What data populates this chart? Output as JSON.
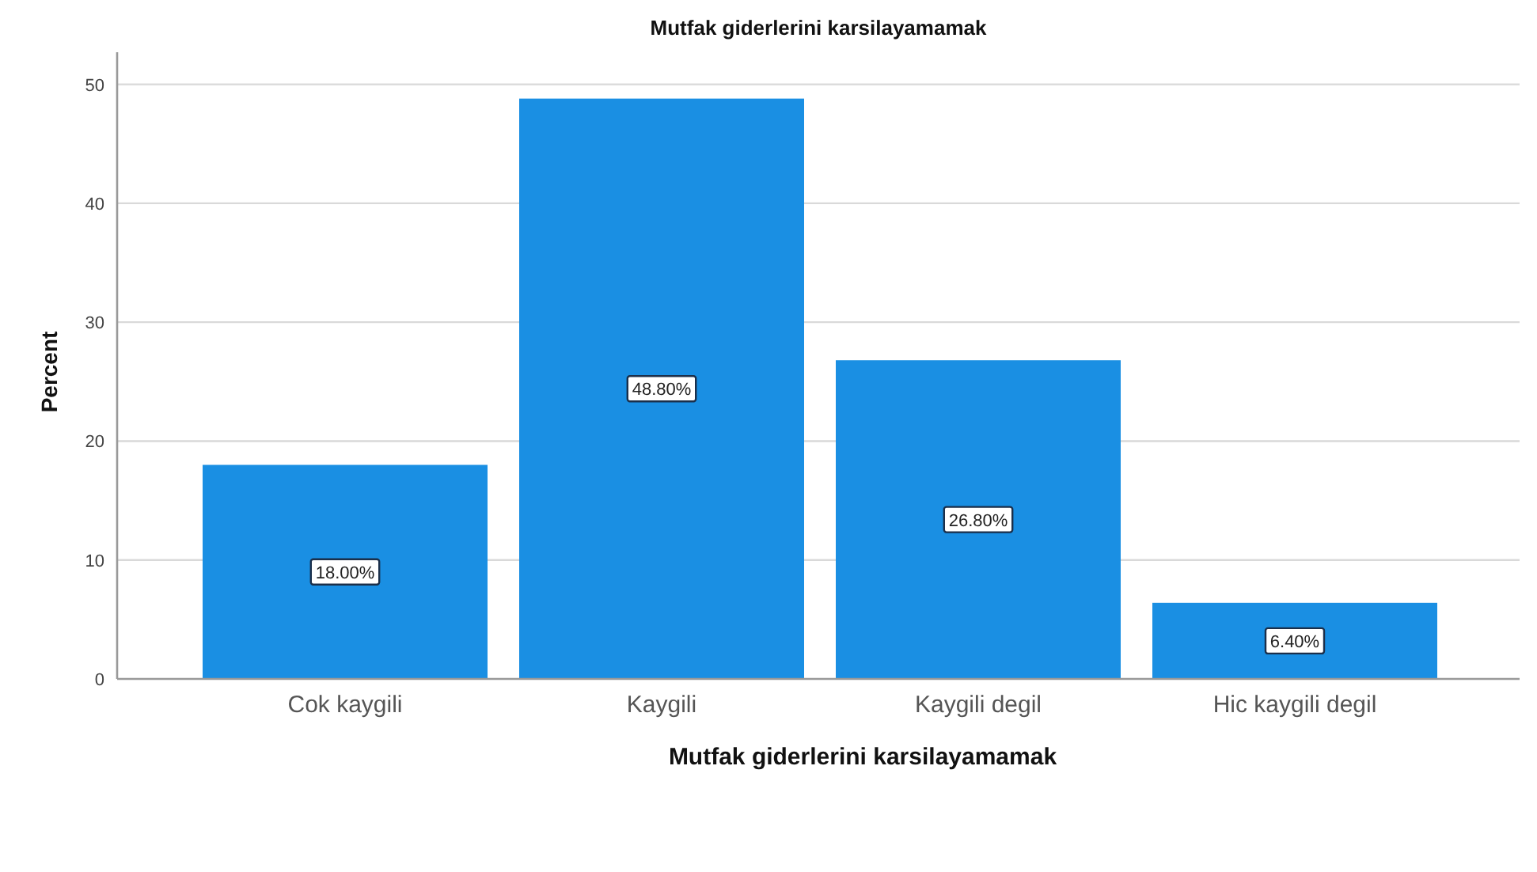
{
  "chart_data": {
    "type": "bar",
    "title": "Mutfak giderlerini karsilayamamak",
    "xlabel": "Mutfak giderlerini karsilayamamak",
    "ylabel": "Percent",
    "categories": [
      "Cok kaygili",
      "Kaygili",
      "Kaygili degil",
      "Hic kaygili degil"
    ],
    "values": [
      18,
      48.8,
      26.8,
      6.4
    ],
    "value_labels": [
      "18.00%",
      "48.80%",
      "26.80%",
      "6.40%"
    ],
    "color": "#1a8fe3",
    "ylim": [
      0,
      52.7
    ],
    "yticks": [
      0,
      10,
      20,
      30,
      40,
      50
    ],
    "grid": "y"
  }
}
